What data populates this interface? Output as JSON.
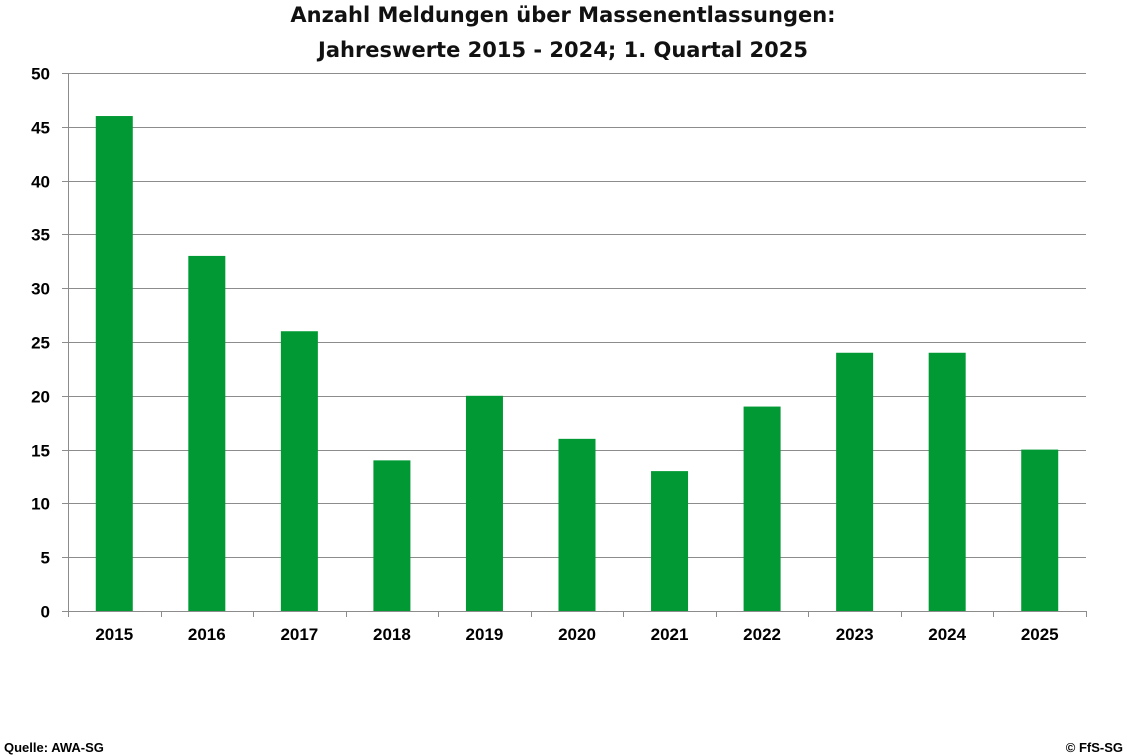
{
  "chart_data": {
    "type": "bar",
    "title_lines": [
      "Anzahl Meldungen über Massenentlassungen:",
      "Jahreswerte 2015 - 2024; 1. Quartal 2025"
    ],
    "categories": [
      "2015",
      "2016",
      "2017",
      "2018",
      "2019",
      "2020",
      "2021",
      "2022",
      "2023",
      "2024",
      "2025"
    ],
    "values": [
      46,
      33,
      26,
      14,
      20,
      16,
      13,
      19,
      24,
      24,
      15
    ],
    "ylim": [
      0,
      50
    ],
    "yticks": [
      "0",
      "5",
      "10",
      "15",
      "20",
      "25",
      "30",
      "35",
      "40",
      "45",
      "50"
    ],
    "grid": true,
    "colors": {
      "bar": "#009933",
      "grid": "#8c8c8c",
      "axis": "#8c8c8c"
    }
  },
  "footer": {
    "source": "Quelle: AWA-SG",
    "copyright": "© FfS-SG"
  }
}
